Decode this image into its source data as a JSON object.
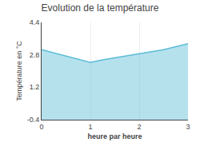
{
  "chart_data": {
    "type": "area",
    "title": "Evolution de la température",
    "xlabel": "heure par heure",
    "ylabel": "Température en °C",
    "x": [
      0,
      0.5,
      1.0,
      1.25,
      1.5,
      2.0,
      2.5,
      3.0
    ],
    "values": [
      3.05,
      2.75,
      2.42,
      2.55,
      2.65,
      2.85,
      3.05,
      3.35
    ],
    "color": "#5bbcd6",
    "xlim": [
      0,
      3
    ],
    "ylim": [
      -0.4,
      4.4
    ],
    "xticks": [
      0,
      1,
      2,
      3
    ],
    "yticks": [
      -0.4,
      1.2,
      2.8,
      4.4
    ],
    "grid": "x"
  }
}
